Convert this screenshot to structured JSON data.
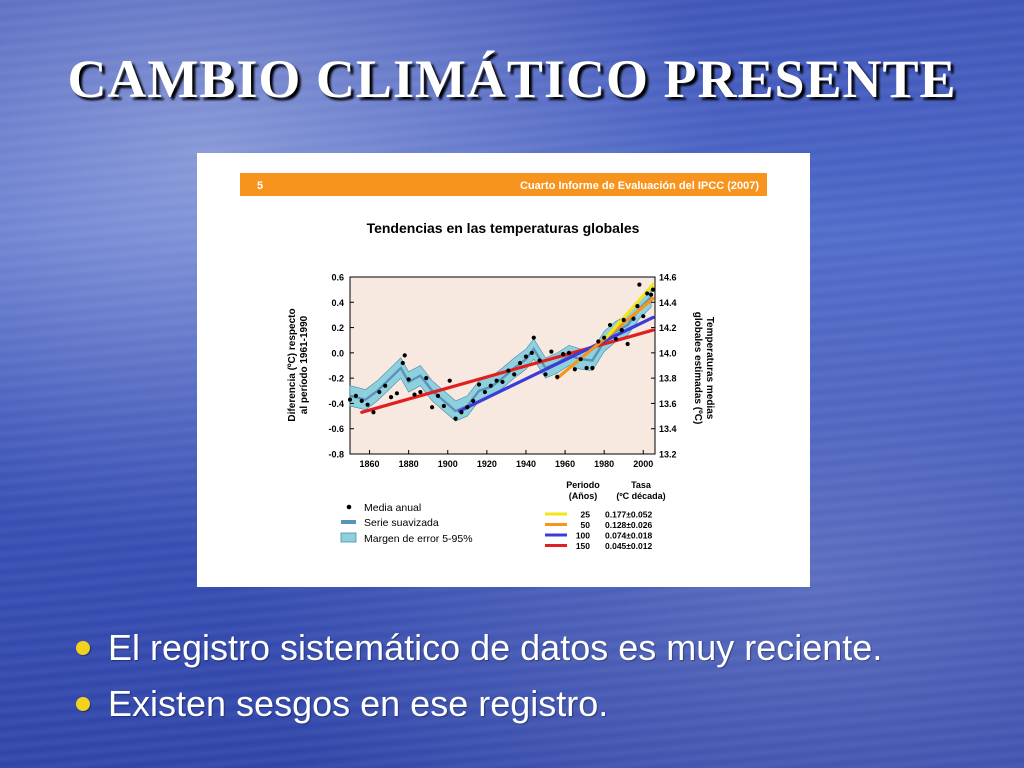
{
  "slide": {
    "title": "CAMBIO CLIMÁTICO PRESENTE",
    "bullets": [
      "El registro sistemático de datos es muy reciente.",
      "Existen sesgos en ese registro."
    ],
    "bullet_color": "#f2d21e"
  },
  "figure": {
    "header_number": "5",
    "header_title": "Cuarto Informe de Evaluación del IPCC (2007)",
    "header_color": "#f7941d"
  },
  "chart_data": {
    "type": "scatter",
    "title": "Tendencias en las temperaturas globales",
    "ylabel": "Diferencia (ºC) respecto al período 1961-1990",
    "ylabel_lines": [
      "Diferencia (ºC) respecto",
      "al período 1961-1990"
    ],
    "ylabel2_lines": [
      "Temperaturas medias",
      "globales estimadas (ºC)"
    ],
    "xlim": [
      1850,
      2006
    ],
    "ylim": [
      -0.8,
      0.6
    ],
    "y2lim": [
      13.2,
      14.6
    ],
    "xticks": [
      1860,
      1880,
      1900,
      1920,
      1940,
      1960,
      1980,
      2000
    ],
    "yticks": [
      0.6,
      0.4,
      0.2,
      0.0,
      -0.2,
      -0.4,
      -0.6,
      -0.8
    ],
    "ytick_labels": [
      "0.6",
      "0.4",
      "0.2",
      "0.0",
      "-0.2",
      "-0.4",
      "-0.6",
      "-0.8"
    ],
    "y2ticks": [
      14.6,
      14.4,
      14.2,
      14.0,
      13.8,
      13.6,
      13.4,
      13.2
    ],
    "y2tick_labels": [
      "14.6",
      "14.4",
      "14.2",
      "14.0",
      "13.8",
      "13.6",
      "13.4",
      "13.2"
    ],
    "plot_background": "#f7e9e0",
    "annual_mean": {
      "x": [
        1850,
        1853,
        1856,
        1859,
        1862,
        1865,
        1868,
        1871,
        1874,
        1877,
        1878,
        1880,
        1883,
        1886,
        1889,
        1892,
        1895,
        1898,
        1901,
        1904,
        1907,
        1910,
        1913,
        1916,
        1919,
        1922,
        1925,
        1928,
        1931,
        1934,
        1937,
        1940,
        1943,
        1944,
        1947,
        1950,
        1953,
        1956,
        1959,
        1962,
        1965,
        1968,
        1971,
        1974,
        1977,
        1980,
        1983,
        1986,
        1989,
        1990,
        1992,
        1995,
        1997,
        1998,
        2000,
        2002,
        2004,
        2005
      ],
      "y": [
        -0.37,
        -0.34,
        -0.38,
        -0.41,
        -0.47,
        -0.31,
        -0.26,
        -0.35,
        -0.32,
        -0.08,
        -0.02,
        -0.21,
        -0.33,
        -0.31,
        -0.2,
        -0.43,
        -0.34,
        -0.42,
        -0.22,
        -0.52,
        -0.47,
        -0.43,
        -0.38,
        -0.25,
        -0.31,
        -0.26,
        -0.22,
        -0.23,
        -0.14,
        -0.17,
        -0.08,
        -0.03,
        0.0,
        0.12,
        -0.06,
        -0.17,
        0.01,
        -0.19,
        -0.01,
        0.0,
        -0.13,
        -0.05,
        -0.12,
        -0.12,
        0.09,
        0.12,
        0.22,
        0.11,
        0.18,
        0.26,
        0.07,
        0.27,
        0.37,
        0.54,
        0.29,
        0.47,
        0.46,
        0.5
      ]
    },
    "smoothed_series": {
      "name": "Serie suavizada",
      "x": [
        1850,
        1858,
        1864,
        1870,
        1876,
        1880,
        1886,
        1892,
        1898,
        1904,
        1910,
        1916,
        1922,
        1928,
        1934,
        1940,
        1944,
        1950,
        1956,
        1962,
        1968,
        1974,
        1980,
        1986,
        1992,
        1998,
        2004
      ],
      "y": [
        -0.34,
        -0.37,
        -0.3,
        -0.21,
        -0.12,
        -0.23,
        -0.18,
        -0.3,
        -0.38,
        -0.46,
        -0.42,
        -0.3,
        -0.27,
        -0.2,
        -0.12,
        -0.05,
        0.03,
        -0.12,
        -0.08,
        -0.02,
        -0.05,
        -0.06,
        0.09,
        0.17,
        0.22,
        0.35,
        0.44
      ],
      "color": "#5b93b8"
    },
    "error_band": {
      "name": "Margen de error 5-95%",
      "width": 0.08,
      "color": "#8fd0de"
    },
    "trends": {
      "title_period": "Periodo",
      "title_period_sub": "(Años)",
      "title_rate": "Tasa",
      "title_rate_sub": "(ºC década)",
      "items": [
        {
          "period": "25",
          "rate": "0.177±0.052",
          "color": "#f4e514",
          "x": [
            1981,
            2005
          ],
          "y": [
            0.12,
            0.54
          ]
        },
        {
          "period": "50",
          "rate": "0.128±0.026",
          "color": "#f7941d",
          "x": [
            1956,
            2005
          ],
          "y": [
            -0.2,
            0.43
          ]
        },
        {
          "period": "100",
          "rate": "0.074±0.018",
          "color": "#3b3bd8",
          "x": [
            1906,
            2005
          ],
          "y": [
            -0.46,
            0.28
          ]
        },
        {
          "period": "150",
          "rate": "0.045±0.012",
          "color": "#e02020",
          "x": [
            1856,
            2005
          ],
          "y": [
            -0.47,
            0.18
          ]
        }
      ]
    },
    "legend": {
      "annual_mean_label": "Media anual",
      "smoothed_label": "Serie suavizada",
      "band_label": "Margen de error 5-95%"
    }
  }
}
